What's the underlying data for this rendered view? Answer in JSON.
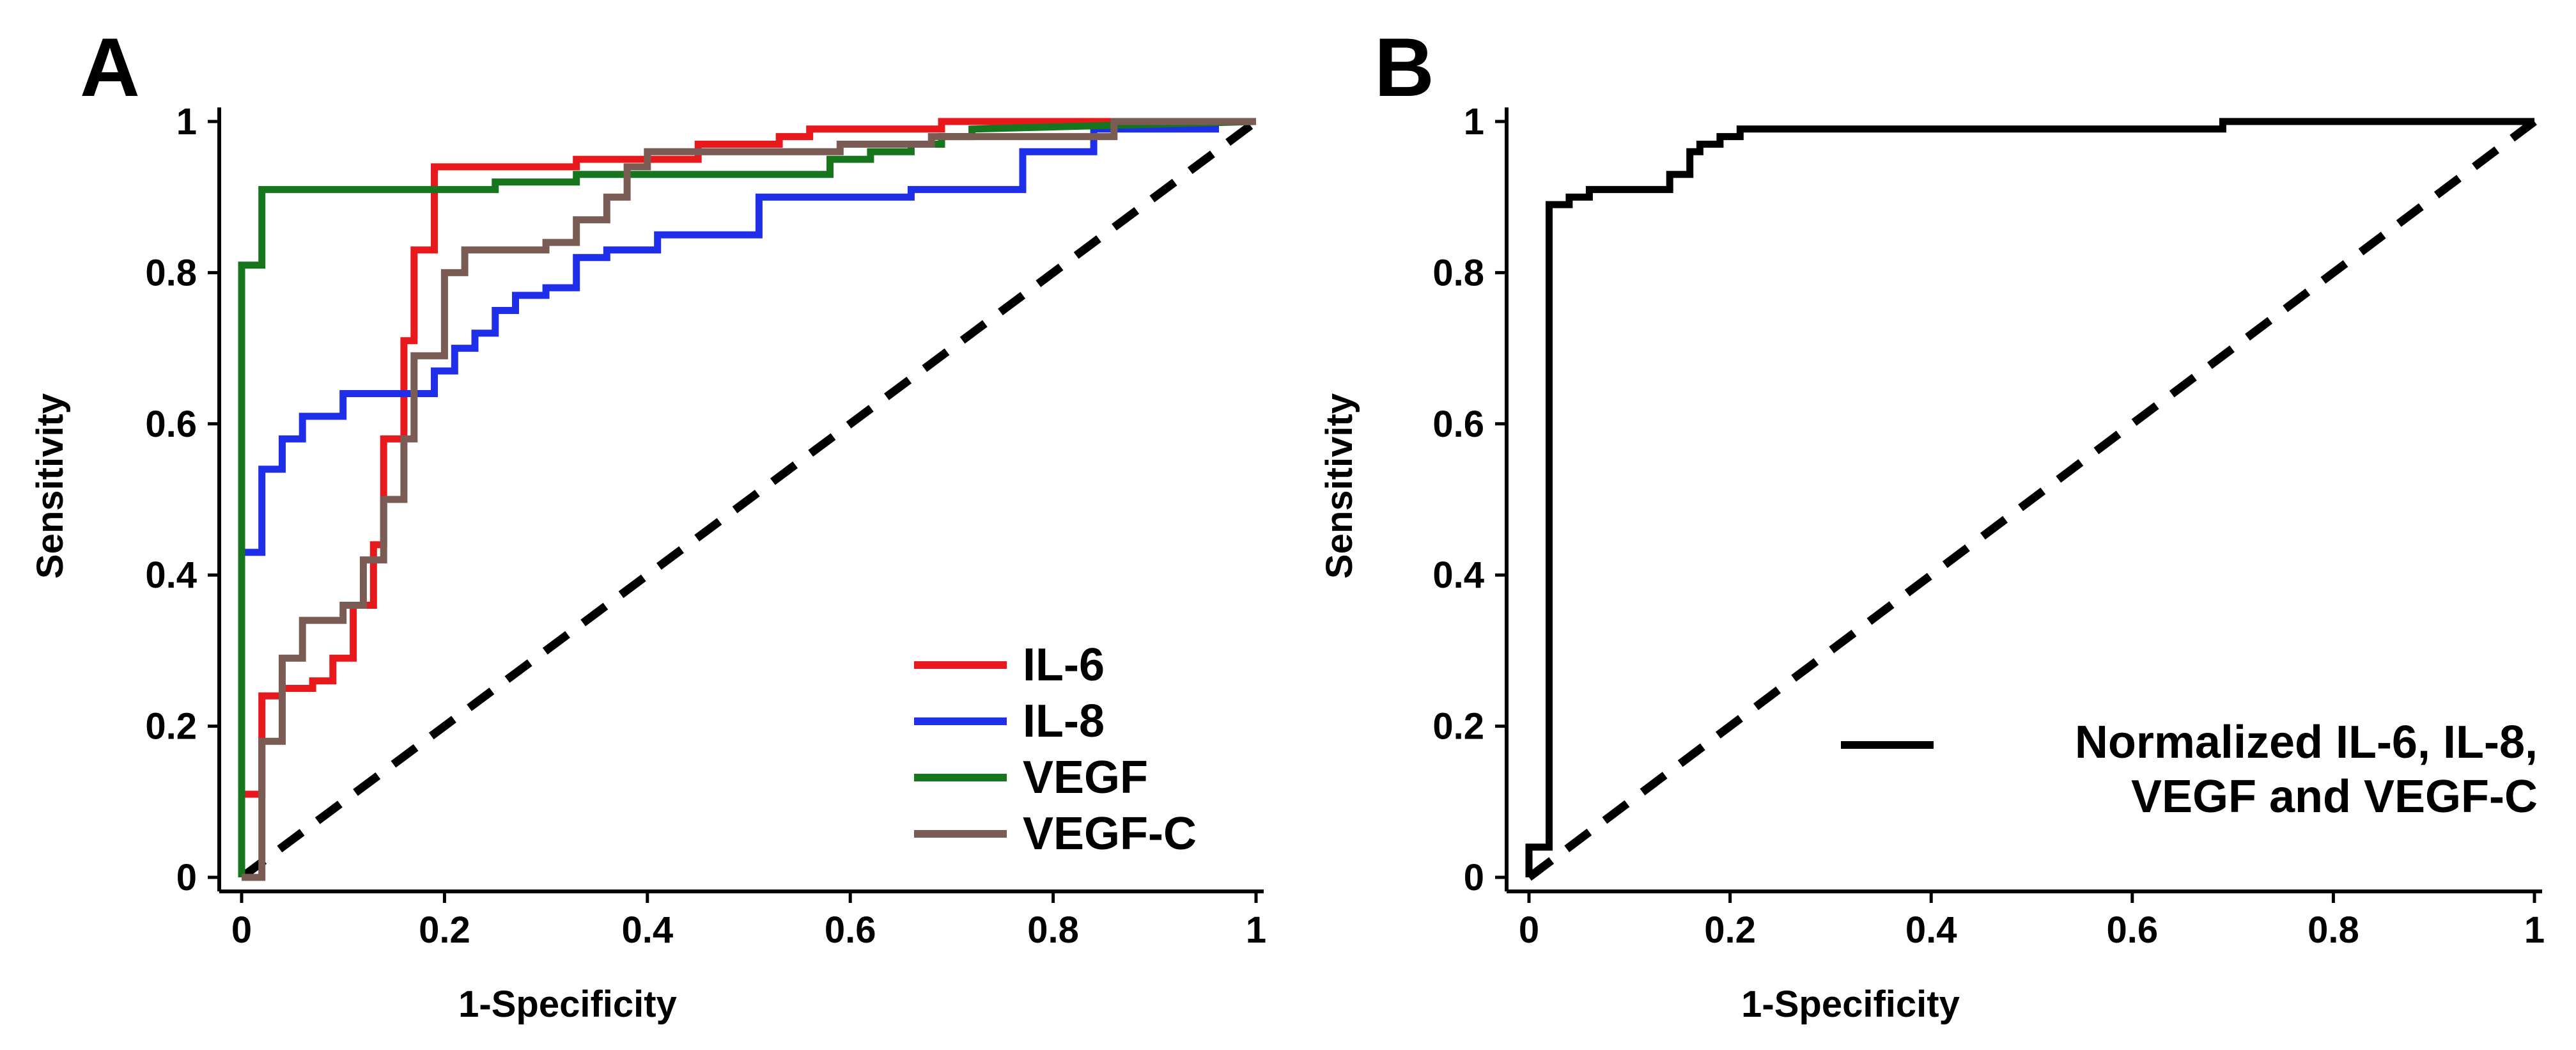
{
  "chart_data": [
    {
      "panel": "A",
      "type": "line",
      "title": "",
      "xlabel": "1-Specificity",
      "ylabel": "Sensitivity",
      "xlim": [
        0,
        1
      ],
      "ylim": [
        0,
        1
      ],
      "xticks": [
        "0",
        "0.2",
        "0.4",
        "0.6",
        "0.8",
        "1"
      ],
      "yticks": [
        "0",
        "0.2",
        "0.4",
        "0.6",
        "0.8",
        "1"
      ],
      "grid": false,
      "legend_position": "bottom-right",
      "reference_line": {
        "name": "chance",
        "color": "#000000",
        "x": [
          0,
          1
        ],
        "y": [
          0,
          1
        ]
      },
      "series": [
        {
          "name": "IL-6",
          "color": "#e8191c",
          "x": [
            0,
            0,
            0.02,
            0.02,
            0.04,
            0.04,
            0.07,
            0.07,
            0.09,
            0.09,
            0.11,
            0.11,
            0.13,
            0.13,
            0.14,
            0.14,
            0.16,
            0.16,
            0.17,
            0.17,
            0.19,
            0.19,
            0.33,
            0.33,
            0.45,
            0.45,
            0.53,
            0.53,
            0.56,
            0.56,
            0.69,
            0.69,
            1
          ],
          "y": [
            0,
            0.11,
            0.11,
            0.24,
            0.24,
            0.25,
            0.25,
            0.26,
            0.26,
            0.29,
            0.29,
            0.36,
            0.36,
            0.44,
            0.44,
            0.58,
            0.58,
            0.71,
            0.71,
            0.83,
            0.83,
            0.94,
            0.94,
            0.95,
            0.95,
            0.97,
            0.97,
            0.98,
            0.98,
            0.99,
            0.99,
            1,
            1
          ]
        },
        {
          "name": "IL-8",
          "color": "#1f2ee8",
          "x": [
            0,
            0,
            0.02,
            0.02,
            0.04,
            0.04,
            0.06,
            0.06,
            0.1,
            0.1,
            0.19,
            0.19,
            0.21,
            0.21,
            0.23,
            0.23,
            0.25,
            0.25,
            0.27,
            0.27,
            0.3,
            0.3,
            0.33,
            0.33,
            0.36,
            0.36,
            0.41,
            0.41,
            0.49,
            0.49,
            0.51,
            0.51,
            0.66,
            0.66,
            0.77,
            0.77,
            0.84,
            0.84,
            0.96,
            0.96
          ],
          "y": [
            0,
            0.43,
            0.43,
            0.54,
            0.54,
            0.58,
            0.58,
            0.61,
            0.61,
            0.64,
            0.64,
            0.67,
            0.67,
            0.7,
            0.7,
            0.72,
            0.72,
            0.75,
            0.75,
            0.77,
            0.77,
            0.78,
            0.78,
            0.82,
            0.82,
            0.83,
            0.83,
            0.85,
            0.85,
            0.85,
            0.85,
            0.9,
            0.9,
            0.91,
            0.91,
            0.96,
            0.96,
            0.99,
            0.99,
            1
          ]
        },
        {
          "name": "VEGF",
          "color": "#17751e",
          "x": [
            0,
            0,
            0.02,
            0.02,
            0.25,
            0.25,
            0.33,
            0.33,
            0.58,
            0.58,
            0.62,
            0.62,
            0.66,
            0.66,
            0.69,
            0.69,
            0.72,
            0.72,
            1
          ],
          "y": [
            0,
            0.81,
            0.81,
            0.91,
            0.91,
            0.92,
            0.92,
            0.93,
            0.93,
            0.95,
            0.95,
            0.96,
            0.96,
            0.97,
            0.97,
            0.98,
            0.98,
            0.99,
            1
          ]
        },
        {
          "name": "VEGF-C",
          "color": "#7a5c54",
          "x": [
            0,
            0.02,
            0.02,
            0.04,
            0.04,
            0.06,
            0.06,
            0.1,
            0.1,
            0.12,
            0.12,
            0.14,
            0.14,
            0.16,
            0.16,
            0.17,
            0.17,
            0.2,
            0.2,
            0.22,
            0.22,
            0.3,
            0.3,
            0.33,
            0.33,
            0.36,
            0.36,
            0.38,
            0.38,
            0.4,
            0.4,
            0.59,
            0.59,
            0.68,
            0.68,
            0.86,
            0.86,
            1
          ],
          "y": [
            0,
            0,
            0.18,
            0.18,
            0.29,
            0.29,
            0.34,
            0.34,
            0.36,
            0.36,
            0.42,
            0.42,
            0.5,
            0.5,
            0.58,
            0.58,
            0.69,
            0.69,
            0.8,
            0.8,
            0.83,
            0.83,
            0.84,
            0.84,
            0.87,
            0.87,
            0.9,
            0.9,
            0.94,
            0.94,
            0.96,
            0.96,
            0.97,
            0.97,
            0.98,
            0.98,
            1,
            1
          ]
        }
      ]
    },
    {
      "panel": "B",
      "type": "line",
      "title": "",
      "xlabel": "1-Specificity",
      "ylabel": "Sensitivity",
      "xlim": [
        0,
        1
      ],
      "ylim": [
        0,
        1
      ],
      "xticks": [
        "0",
        "0.2",
        "0.4",
        "0.6",
        "0.8",
        "1"
      ],
      "yticks": [
        "0",
        "0.2",
        "0.4",
        "0.6",
        "0.8",
        "1"
      ],
      "grid": false,
      "legend_position": "bottom-right",
      "reference_line": {
        "name": "chance",
        "color": "#000000",
        "x": [
          0,
          1
        ],
        "y": [
          0,
          1
        ]
      },
      "series": [
        {
          "name": "Normalized IL-6, IL-8,\nVEGF and VEGF-C",
          "legend_lines": [
            "Normalized IL-6, IL-8,",
            "VEGF and VEGF-C"
          ],
          "color": "#000000",
          "x": [
            0,
            0,
            0.02,
            0.02,
            0.04,
            0.04,
            0.06,
            0.06,
            0.08,
            0.08,
            0.14,
            0.14,
            0.16,
            0.16,
            0.17,
            0.17,
            0.19,
            0.19,
            0.21,
            0.21,
            0.69,
            0.69,
            1
          ],
          "y": [
            0,
            0.04,
            0.04,
            0.89,
            0.89,
            0.9,
            0.9,
            0.91,
            0.91,
            0.91,
            0.91,
            0.93,
            0.93,
            0.96,
            0.96,
            0.97,
            0.97,
            0.98,
            0.98,
            0.99,
            0.99,
            1,
            1
          ]
        }
      ]
    }
  ]
}
